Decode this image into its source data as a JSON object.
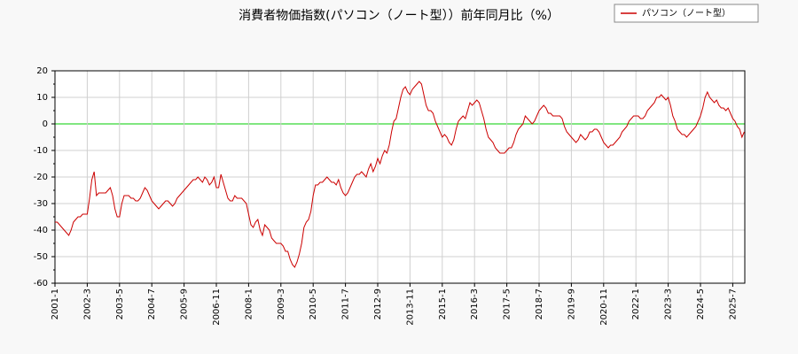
{
  "chart_data": {
    "type": "line",
    "title": "消費者物価指数(パソコン（ノート型））前年同月比（%）",
    "legend": "upper right",
    "grid": true,
    "ylim": [
      -60,
      20
    ],
    "yticks": [
      -60,
      -50,
      -40,
      -30,
      -20,
      -10,
      0,
      10,
      20
    ],
    "categories": [
      "2001-1",
      null,
      null,
      null,
      null,
      null,
      null,
      null,
      null,
      null,
      null,
      null,
      null,
      null,
      "2002-3",
      null,
      null,
      null,
      null,
      null,
      null,
      null,
      null,
      null,
      null,
      null,
      null,
      null,
      "2003-5",
      null,
      null,
      null,
      null,
      null,
      null,
      null,
      null,
      null,
      null,
      null,
      null,
      null,
      "2004-7",
      null,
      null,
      null,
      null,
      null,
      null,
      null,
      null,
      null,
      null,
      null,
      null,
      null,
      "2005-9",
      null,
      null,
      null,
      null,
      null,
      null,
      null,
      null,
      null,
      null,
      null,
      null,
      null,
      "2006-11",
      null,
      null,
      null,
      null,
      null,
      null,
      null,
      null,
      null,
      null,
      null,
      null,
      null,
      "2008-1",
      null,
      null,
      null,
      null,
      null,
      null,
      null,
      null,
      null,
      null,
      null,
      null,
      null,
      "2009-3",
      null,
      null,
      null,
      null,
      null,
      null,
      null,
      null,
      null,
      null,
      null,
      null,
      null,
      "2010-5",
      null,
      null,
      null,
      null,
      null,
      null,
      null,
      null,
      null,
      null,
      null,
      null,
      null,
      "2011-7",
      null,
      null,
      null,
      null,
      null,
      null,
      null,
      null,
      null,
      null,
      null,
      null,
      null,
      "2012-9",
      null,
      null,
      null,
      null,
      null,
      null,
      null,
      null,
      null,
      null,
      null,
      null,
      null,
      "2013-11",
      null,
      null,
      null,
      null,
      null,
      null,
      null,
      null,
      null,
      null,
      null,
      null,
      null,
      "2015-1",
      null,
      null,
      null,
      null,
      null,
      null,
      null,
      null,
      null,
      null,
      null,
      null,
      null,
      "2016-3",
      null,
      null,
      null,
      null,
      null,
      null,
      null,
      null,
      null,
      null,
      null,
      null,
      null,
      "2017-5",
      null,
      null,
      null,
      null,
      null,
      null,
      null,
      null,
      null,
      null,
      null,
      null,
      null,
      "2018-7",
      null,
      null,
      null,
      null,
      null,
      null,
      null,
      null,
      null,
      null,
      null,
      null,
      null,
      "2019-9",
      null,
      null,
      null,
      null,
      null,
      null,
      null,
      null,
      null,
      null,
      null,
      null,
      null,
      "2020-11",
      null,
      null,
      null,
      null,
      null,
      null,
      null,
      null,
      null,
      null,
      null,
      null,
      null,
      "2022-1",
      null,
      null,
      null,
      null,
      null,
      null,
      null,
      null,
      null,
      null,
      null,
      null,
      null,
      "2023-3",
      null,
      null,
      null,
      null,
      null,
      null,
      null,
      null,
      null,
      null,
      null,
      null,
      null,
      "2024-5",
      null,
      null,
      null,
      null,
      null,
      null,
      null,
      null,
      null,
      null,
      null,
      null,
      null,
      "2025-7",
      null,
      null,
      null,
      null,
      null
    ],
    "series": [
      {
        "name": "パソコン（ノート型）",
        "color": "#cc0000",
        "values": [
          -37,
          -37,
          -38,
          -39,
          -40,
          -41,
          -42,
          -40,
          -37,
          -36,
          -35,
          -35,
          -34,
          -34,
          -34,
          -28,
          -21,
          -18,
          -27,
          -26,
          -26,
          -26,
          -26,
          -25,
          -24,
          -27,
          -32,
          -35,
          -35,
          -30,
          -27,
          -27,
          -27,
          -28,
          -28,
          -29,
          -29,
          -28,
          -26,
          -24,
          -25,
          -27,
          -29,
          -30,
          -31,
          -32,
          -31,
          -30,
          -29,
          -29,
          -30,
          -31,
          -30,
          -28,
          -27,
          -26,
          -25,
          -24,
          -23,
          -22,
          -21,
          -21,
          -20,
          -21,
          -22,
          -20,
          -21,
          -23,
          -22,
          -20,
          -24,
          -24,
          -19,
          -22,
          -25,
          -28,
          -29,
          -29,
          -27,
          -28,
          -28,
          -28,
          -29,
          -30,
          -34,
          -38,
          -39,
          -37,
          -36,
          -40,
          -42,
          -38,
          -39,
          -40,
          -43,
          -44,
          -45,
          -45,
          -45,
          -46,
          -48,
          -48,
          -51,
          -53,
          -54,
          -52,
          -49,
          -45,
          -39,
          -37,
          -36,
          -33,
          -27,
          -23,
          -23,
          -22,
          -22,
          -21,
          -20,
          -21,
          -22,
          -22,
          -23,
          -21,
          -24,
          -26,
          -27,
          -26,
          -24,
          -22,
          -20,
          -19,
          -19,
          -18,
          -19,
          -20,
          -17,
          -15,
          -18,
          -16,
          -13,
          -15,
          -12,
          -10,
          -11,
          -8,
          -3,
          1,
          2,
          6,
          10,
          13,
          14,
          12,
          11,
          13,
          14,
          15,
          16,
          15,
          11,
          7,
          5,
          5,
          4,
          1,
          -1,
          -3,
          -5,
          -4,
          -5,
          -7,
          -8,
          -6,
          -2,
          1,
          2,
          3,
          2,
          5,
          8,
          7,
          8,
          9,
          8,
          5,
          2,
          -2,
          -5,
          -6,
          -7,
          -9,
          -10,
          -11,
          -11,
          -11,
          -10,
          -9,
          -9,
          -7,
          -4,
          -2,
          -1,
          0,
          3,
          2,
          1,
          0,
          1,
          3,
          5,
          6,
          7,
          6,
          4,
          4,
          3,
          3,
          3,
          3,
          2,
          -1,
          -3,
          -4,
          -5,
          -6,
          -7,
          -6,
          -4,
          -5,
          -6,
          -5,
          -3,
          -3,
          -2,
          -2,
          -3,
          -5,
          -7,
          -8,
          -9,
          -8,
          -8,
          -7,
          -6,
          -5,
          -3,
          -2,
          -1,
          1,
          2,
          3,
          3,
          3,
          2,
          2,
          3,
          5,
          6,
          7,
          8,
          10,
          10,
          11,
          10,
          9,
          10,
          7,
          3,
          1,
          -2,
          -3,
          -4,
          -4,
          -5,
          -4,
          -3,
          -2,
          -1,
          1,
          3,
          6,
          10,
          12,
          10,
          9,
          8,
          9,
          7,
          6,
          6,
          5,
          6,
          4,
          2,
          1,
          -1,
          -2,
          -5,
          -3
        ]
      }
    ]
  }
}
